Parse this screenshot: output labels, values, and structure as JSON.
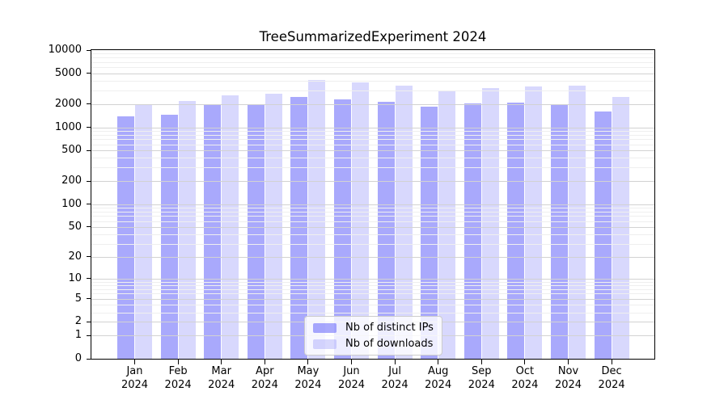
{
  "title": "TreeSummarizedExperiment 2024",
  "chart_data": {
    "type": "bar",
    "title": "TreeSummarizedExperiment 2024",
    "categories": [
      "Jan",
      "Feb",
      "Mar",
      "Apr",
      "May",
      "Jun",
      "Jul",
      "Aug",
      "Sep",
      "Oct",
      "Nov",
      "Dec"
    ],
    "x_tick_second_line": "2024",
    "series": [
      {
        "name": "Nb of distinct IPs",
        "color": "rgba(98,98,249,0.55)",
        "values": [
          1400,
          1450,
          1950,
          2000,
          2500,
          2300,
          2150,
          1850,
          2050,
          2100,
          2000,
          1600
        ]
      },
      {
        "name": "Nb of downloads",
        "color": "rgba(98,98,249,0.25)",
        "values": [
          2000,
          2200,
          2600,
          2700,
          4100,
          3800,
          3500,
          2900,
          3250,
          3400,
          3450,
          2500
        ]
      }
    ],
    "yscale": "log1p",
    "ylim": [
      0,
      10000
    ],
    "yticks": [
      0,
      1,
      2,
      5,
      10,
      20,
      50,
      100,
      200,
      500,
      1000,
      2000,
      5000,
      10000
    ],
    "minor_ticks": [
      3,
      4,
      6,
      7,
      8,
      9,
      30,
      40,
      60,
      70,
      80,
      90,
      300,
      400,
      600,
      700,
      800,
      900,
      3000,
      4000,
      6000,
      7000,
      8000,
      9000
    ],
    "grid": true,
    "legend_position": "lower center",
    "colors": {
      "bar_base": "#6262f9",
      "major_grid": "#d2d2d2",
      "minor_grid": "#efefef",
      "axis": "#000000",
      "background": "#ffffff"
    }
  }
}
